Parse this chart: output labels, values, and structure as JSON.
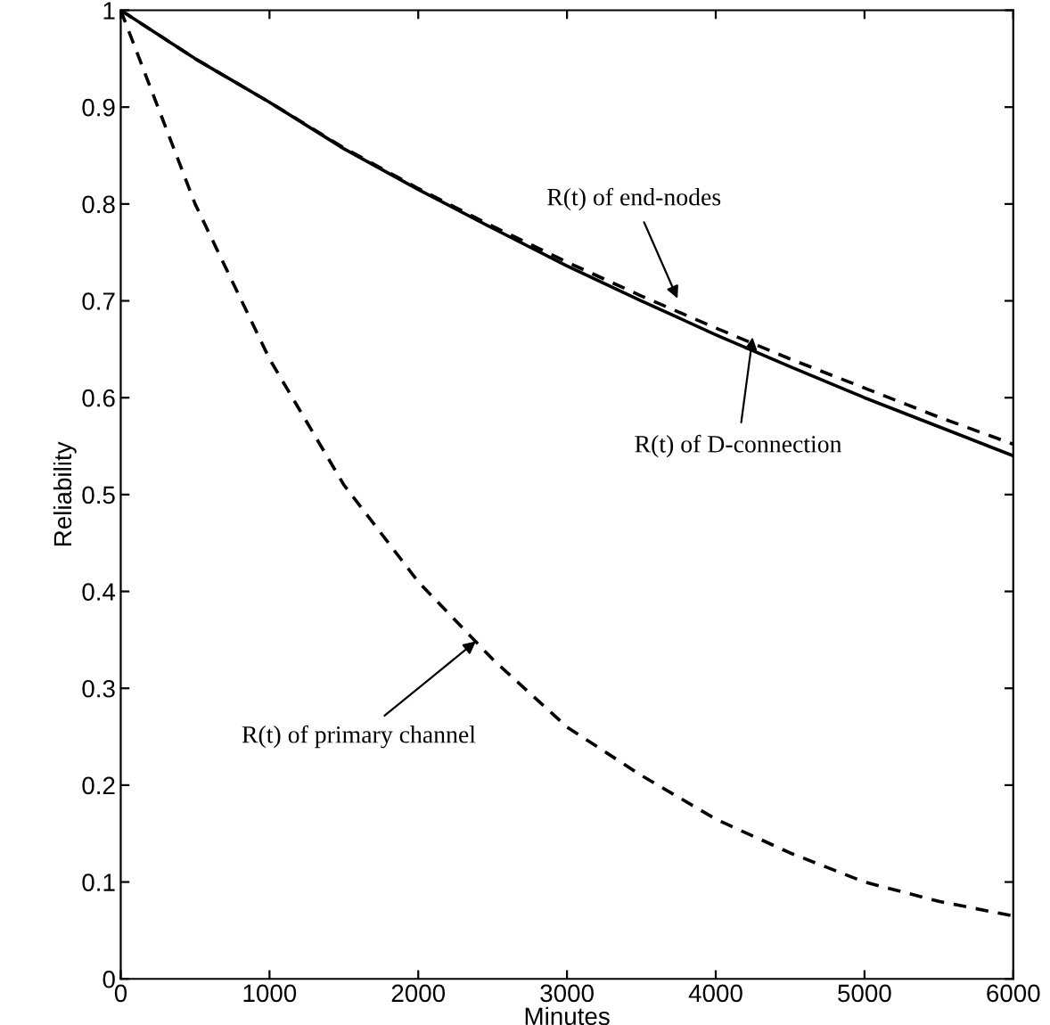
{
  "chart_data": {
    "type": "line",
    "xlabel": "Minutes",
    "ylabel": "Reliability",
    "x": [
      0,
      500,
      1000,
      1500,
      2000,
      2500,
      3000,
      3500,
      4000,
      4500,
      5000,
      5500,
      6000
    ],
    "series": [
      {
        "color": "#000000",
        "line_style": "dashed",
        "values": [
          1,
          0.95,
          0.905,
          0.858,
          0.816,
          0.777,
          0.74,
          0.705,
          0.672,
          0.64,
          0.61,
          0.58,
          0.552
        ]
      },
      {
        "color": "#000000",
        "line_style": "solid",
        "values": [
          1,
          0.95,
          0.905,
          0.857,
          0.815,
          0.775,
          0.736,
          0.7,
          0.665,
          0.632,
          0.6,
          0.57,
          0.54
        ]
      },
      {
        "color": "#000000",
        "line_style": "dashed",
        "values": [
          1,
          0.8,
          0.64,
          0.51,
          0.41,
          0.33,
          0.26,
          0.21,
          0.165,
          0.13,
          0.1,
          0.08,
          0.065
        ]
      }
    ],
    "xlim": [
      0,
      6000
    ],
    "xticks": [
      0,
      1000,
      2000,
      3000,
      4000,
      5000,
      6000
    ],
    "ylim": [
      0,
      1
    ],
    "yticks": [
      0,
      0.1,
      0.2,
      0.3,
      0.4,
      0.5,
      0.6,
      0.7,
      0.8,
      0.9,
      1
    ],
    "grid": false,
    "legend": false,
    "marker": "none",
    "annotations": [
      {
        "text": "R(t) of end-nodes",
        "x": 3750,
        "y": 0.7
      },
      {
        "text": "R(t) of D-connection",
        "x": 4250,
        "y": 0.665
      },
      {
        "text": "R(t) of primary channel",
        "x": 2400,
        "y": 0.35
      }
    ]
  }
}
